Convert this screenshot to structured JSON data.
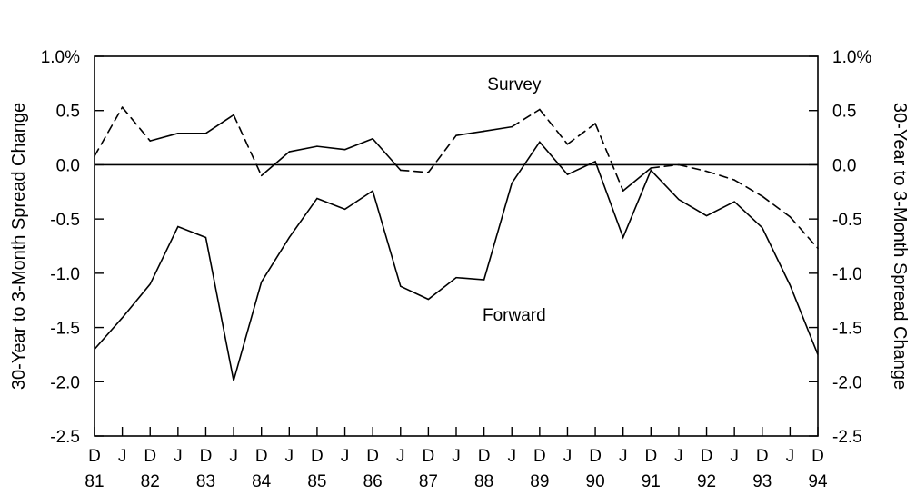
{
  "chart_data": {
    "type": "line",
    "ylabel_left": "30-Year to 3-Month Spread Change",
    "ylabel_right": "30-Year to 3-Month Spread Change",
    "ylim": [
      -2.5,
      1.0
    ],
    "y_ticks": [
      1.0,
      0.5,
      0.0,
      -0.5,
      -1.0,
      -1.5,
      -2.0,
      -2.5
    ],
    "y_tick_labels": [
      "1.0%",
      "0.5",
      "0.0",
      "-0.5",
      "-1.0",
      "-1.5",
      "-2.0",
      "-2.5"
    ],
    "x_ticks_month": [
      "D",
      "J",
      "D",
      "J",
      "D",
      "J",
      "D",
      "J",
      "D",
      "J",
      "D",
      "J",
      "D",
      "J",
      "D",
      "J",
      "D",
      "J",
      "D",
      "J",
      "D",
      "J",
      "D",
      "J",
      "D",
      "J",
      "D"
    ],
    "x_ticks_year": [
      "81",
      "82",
      "83",
      "84",
      "85",
      "86",
      "87",
      "88",
      "89",
      "90",
      "91",
      "92",
      "93",
      "94"
    ],
    "zero_line": true,
    "grid": false,
    "series": [
      {
        "name": "Survey",
        "dash": "dashed_then_solid_mix",
        "values": [
          0.08,
          0.53,
          0.22,
          0.29,
          0.29,
          0.46,
          -0.1,
          0.12,
          0.17,
          0.14,
          0.24,
          -0.05,
          -0.07,
          0.27,
          0.31,
          0.35,
          0.51,
          0.19,
          0.38,
          -0.24,
          -0.03,
          0.0,
          -0.06,
          -0.14,
          -0.29,
          -0.48,
          -0.77
        ],
        "segments_dashed": [
          [
            0,
            1
          ],
          [
            1,
            2
          ],
          [
            5,
            6
          ],
          [
            11,
            12
          ],
          [
            12,
            13
          ],
          [
            15,
            16
          ],
          [
            16,
            17
          ],
          [
            17,
            18
          ],
          [
            18,
            19
          ],
          [
            20,
            21
          ],
          [
            21,
            22
          ],
          [
            22,
            23
          ],
          [
            23,
            24
          ],
          [
            24,
            25
          ],
          [
            25,
            26
          ]
        ]
      },
      {
        "name": "Forward",
        "values": [
          -1.7,
          -1.41,
          -1.1,
          -0.57,
          -0.67,
          -1.99,
          -1.08,
          -0.67,
          -0.31,
          -0.41,
          -0.24,
          -1.12,
          -1.24,
          -1.04,
          -1.06,
          -0.17,
          0.21,
          -0.09,
          0.03,
          -0.67,
          -0.05,
          -0.32,
          -0.47,
          -0.34,
          -0.58,
          -1.11,
          -1.75
        ]
      }
    ],
    "annotations": [
      {
        "text": "Survey",
        "x_index": 16,
        "y": 0.75
      },
      {
        "text": "Forward",
        "x_index": 16,
        "y": -1.38
      }
    ]
  }
}
